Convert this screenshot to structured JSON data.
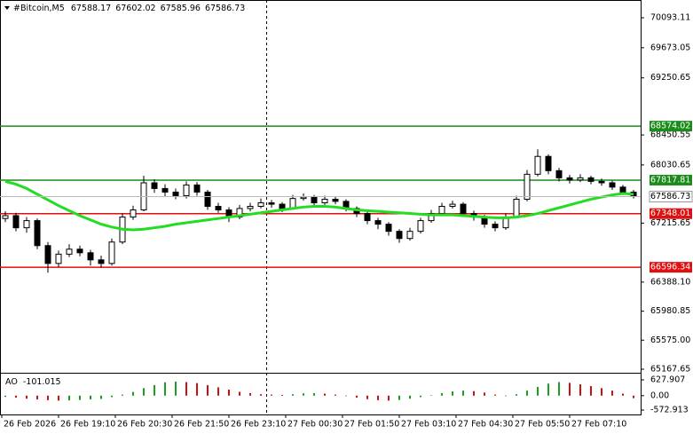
{
  "chart_data": {
    "type": "candlestick",
    "symbol": "#Bitcoin,M5",
    "header_ohlc": [
      67588.17,
      67602.02,
      67585.96,
      67586.73
    ],
    "ylim": [
      65118,
      70342
    ],
    "yticks": [
      70093.11,
      69673.05,
      69250.65,
      68450.55,
      68030.65,
      67215.65,
      {
        "value": 66388.1,
        "label": "66388.10"
      },
      65980.85,
      {
        "value": 65575,
        "label": "65575.00"
      },
      65167.65
    ],
    "xtick_labels": [
      "26 Feb 2026",
      "26 Feb 19:10",
      "26 Feb 20:30",
      "26 Feb 21:50",
      "26 Feb 23:10",
      "27 Feb 00:30",
      "27 Feb 01:50",
      "27 Feb 03:10",
      "27 Feb 04:30",
      "27 Feb 05:50",
      "27 Feb 07:10"
    ],
    "open": [
      67280,
      67320,
      67150,
      67250,
      66900,
      66650,
      66780,
      66850,
      66800,
      66700,
      66650,
      66950,
      67300,
      67400,
      67780,
      67700,
      67650,
      67600,
      67750,
      67650,
      67450,
      67400,
      67300,
      67420,
      67450,
      67500,
      67480,
      67420,
      67560,
      67580,
      67500,
      67550,
      67520,
      67420,
      67350,
      67250,
      67200,
      67100,
      67000,
      67100,
      67250,
      67350,
      67450,
      67480,
      67350,
      67300,
      67200,
      67150,
      67300,
      67550,
      67900,
      68150,
      67950,
      67850,
      67820,
      67850,
      67800,
      67780,
      67720,
      67650
    ],
    "high": [
      67380,
      67360,
      67300,
      67280,
      66950,
      66830,
      66920,
      66900,
      66840,
      66760,
      67000,
      67350,
      67460,
      67880,
      67830,
      67760,
      67700,
      67800,
      67790,
      67680,
      67500,
      67440,
      67470,
      67500,
      67560,
      67540,
      67510,
      67610,
      67630,
      67610,
      67600,
      67590,
      67550,
      67450,
      67380,
      67290,
      67230,
      67130,
      67150,
      67290,
      67400,
      67500,
      67530,
      67510,
      67390,
      67330,
      67240,
      67350,
      67600,
      67960,
      68250,
      68180,
      67990,
      67890,
      67900,
      67880,
      67840,
      67810,
      67750,
      67680
    ],
    "low": [
      67230,
      67100,
      67080,
      66850,
      66520,
      66600,
      66740,
      66750,
      66620,
      66590,
      66620,
      66920,
      67260,
      67380,
      67640,
      67590,
      67550,
      67560,
      67600,
      67400,
      67360,
      67230,
      67270,
      67380,
      67420,
      67430,
      67370,
      67400,
      67530,
      67460,
      67470,
      67480,
      67380,
      67300,
      67200,
      67130,
      67040,
      66940,
      66970,
      67070,
      67220,
      67320,
      67420,
      67310,
      67250,
      67150,
      67100,
      67120,
      67280,
      67520,
      67870,
      67900,
      67800,
      67770,
      67790,
      67760,
      67740,
      67680,
      67610,
      67560
    ],
    "close": [
      67320,
      67150,
      67250,
      66900,
      66650,
      66780,
      66850,
      66800,
      66700,
      66650,
      66950,
      67300,
      67400,
      67780,
      67700,
      67650,
      67600,
      67750,
      67650,
      67450,
      67400,
      67300,
      67420,
      67450,
      67500,
      67480,
      67420,
      67560,
      67580,
      67500,
      67550,
      67520,
      67420,
      67350,
      67250,
      67200,
      67100,
      67000,
      67100,
      67250,
      67350,
      67450,
      67480,
      67350,
      67300,
      67200,
      67150,
      67300,
      67550,
      67900,
      68150,
      67950,
      67850,
      67820,
      67850,
      67800,
      67780,
      67720,
      67650,
      67586.73
    ],
    "ma": {
      "color": "#22dd22",
      "values": [
        67800,
        67760,
        67700,
        67620,
        67540,
        67460,
        67390,
        67320,
        67260,
        67200,
        67160,
        67130,
        67120,
        67130,
        67150,
        67170,
        67200,
        67220,
        67240,
        67260,
        67280,
        67300,
        67320,
        67340,
        67360,
        67380,
        67400,
        67420,
        67440,
        67450,
        67450,
        67440,
        67420,
        67400,
        67390,
        67380,
        67370,
        67360,
        67350,
        67340,
        67330,
        67330,
        67330,
        67320,
        67310,
        67300,
        67290,
        67290,
        67300,
        67320,
        67350,
        67390,
        67430,
        67470,
        67510,
        67550,
        67580,
        67610,
        67630,
        67620
      ]
    },
    "levels": [
      {
        "value": 68574.02,
        "color": "#1a8c1a"
      },
      {
        "value": 67817.81,
        "color": "#1a8c1a"
      },
      {
        "value": 67348.01,
        "color": "#e01010"
      },
      {
        "value": 66596.34,
        "color": "#e01010"
      }
    ],
    "current_price": 67586.73,
    "ao": {
      "name": "AO",
      "up_color": "#1aa01a",
      "down_color": "#d01010",
      "y2lim": [
        -749,
        840
      ],
      "y2ticks": [
        627.907,
        {
          "value": 0,
          "label": "0.00"
        },
        -572.913
      ],
      "values": [
        -50,
        -80,
        -120,
        -150,
        -180,
        -200,
        -190,
        -170,
        -150,
        -130,
        -60,
        40,
        150,
        300,
        420,
        530,
        560,
        540,
        500,
        420,
        330,
        240,
        150,
        100,
        60,
        40,
        30,
        60,
        90,
        100,
        80,
        40,
        -20,
        -80,
        -140,
        -180,
        -200,
        -170,
        -120,
        -60,
        20,
        100,
        170,
        200,
        180,
        120,
        40,
        -20,
        60,
        200,
        350,
        480,
        540,
        510,
        450,
        380,
        300,
        200,
        80,
        -101.015
      ]
    }
  }
}
